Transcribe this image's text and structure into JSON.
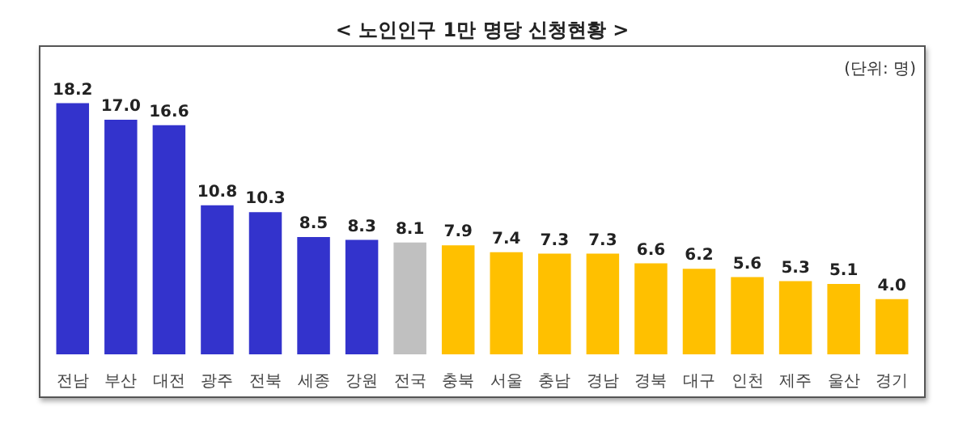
{
  "chart_data": {
    "type": "bar",
    "title": "< 노인인구 1만 명당 신청현황 >",
    "categories": [
      "전남",
      "부산",
      "대전",
      "광주",
      "전북",
      "세종",
      "강원",
      "전국",
      "충북",
      "서울",
      "충남",
      "경남",
      "경북",
      "대구",
      "인천",
      "제주",
      "울산",
      "경기"
    ],
    "values": [
      18.2,
      17.0,
      16.6,
      10.8,
      10.3,
      8.5,
      8.3,
      8.1,
      7.9,
      7.4,
      7.3,
      7.3,
      6.6,
      6.2,
      5.6,
      5.3,
      5.1,
      4.0
    ],
    "colors": [
      "#3333cc",
      "#3333cc",
      "#3333cc",
      "#3333cc",
      "#3333cc",
      "#3333cc",
      "#3333cc",
      "#c0c0c0",
      "#ffc000",
      "#ffc000",
      "#ffc000",
      "#ffc000",
      "#ffc000",
      "#ffc000",
      "#ffc000",
      "#ffc000",
      "#ffc000",
      "#ffc000"
    ],
    "annotations": [
      "(단위: 명)"
    ],
    "value_labels": [
      "18.2",
      "17.0",
      "16.6",
      "10.8",
      "10.3",
      "8.5",
      "8.3",
      "8.1",
      "7.9",
      "7.4",
      "7.3",
      "7.3",
      "6.6",
      "6.2",
      "5.6",
      "5.3",
      "5.1",
      "4.0"
    ],
    "tick_labels": "x",
    "grid": false
  }
}
